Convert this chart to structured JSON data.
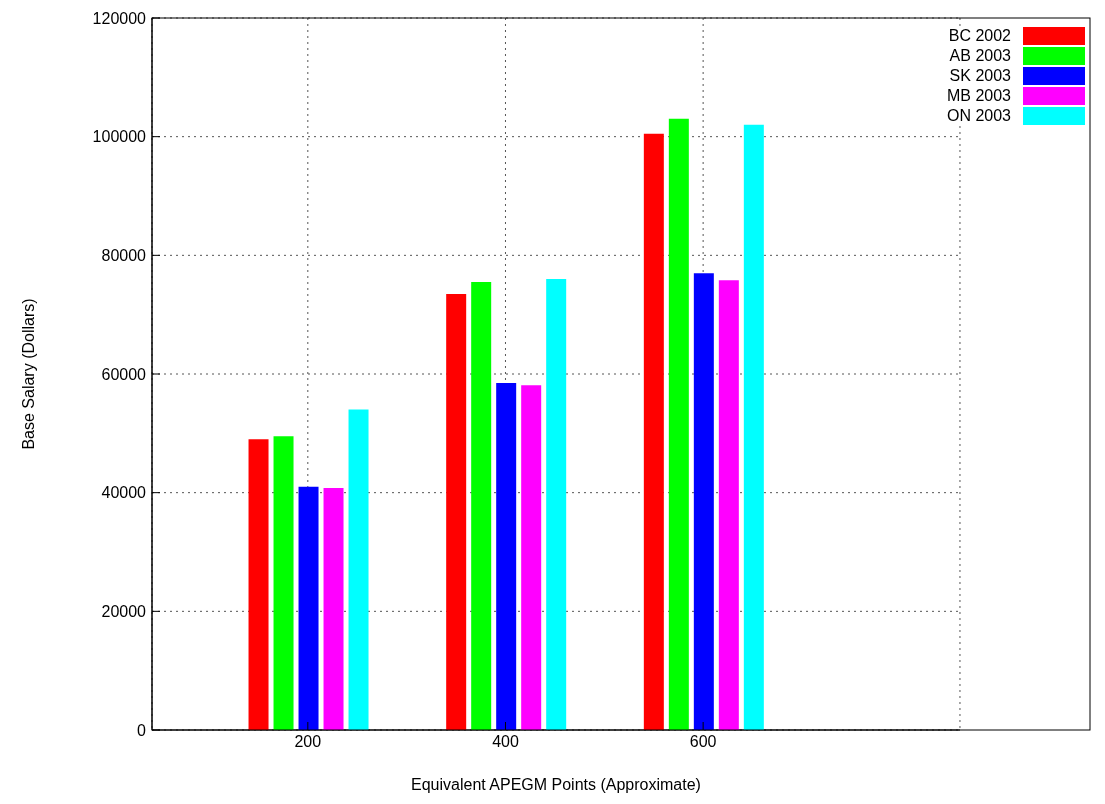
{
  "chart_data": {
    "type": "bar",
    "xlabel": "Equivalent APEGM Points (Approximate)",
    "ylabel": "Base Salary (Dollars)",
    "categories": [
      "200",
      "400",
      "600"
    ],
    "series": [
      {
        "name": "BC 2002",
        "color": "#ff0000",
        "values": [
          49000,
          73500,
          100500
        ]
      },
      {
        "name": "AB 2003",
        "color": "#00ff00",
        "values": [
          49500,
          75500,
          103000
        ]
      },
      {
        "name": "SK 2003",
        "color": "#0000ff",
        "values": [
          41000,
          58500,
          77000
        ]
      },
      {
        "name": "MB 2003",
        "color": "#ff00ff",
        "values": [
          40800,
          58100,
          75800
        ]
      },
      {
        "name": "ON 2003",
        "color": "#00ffff",
        "values": [
          54000,
          76000,
          102000
        ]
      }
    ],
    "ylim": [
      0,
      120000
    ],
    "yticks": [
      0,
      20000,
      40000,
      60000,
      80000,
      100000,
      120000
    ],
    "grid": true,
    "legend": "top right"
  }
}
